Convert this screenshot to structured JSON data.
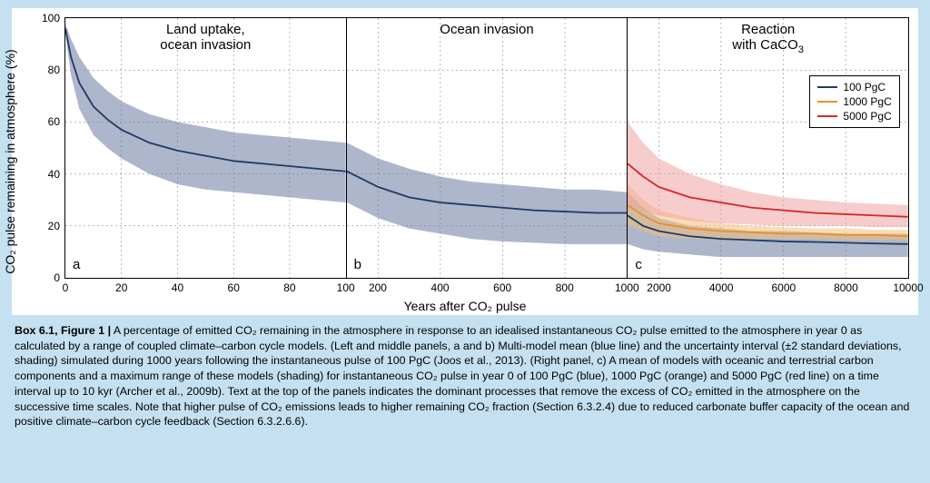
{
  "figure": {
    "ylabel": "CO₂ pulse remaining in atmosphere (%)",
    "xlabel": "Years after CO₂ pulse",
    "ylim": [
      0,
      100
    ],
    "yticks": [
      0,
      20,
      40,
      60,
      80,
      100
    ],
    "background_color": "#ffffff",
    "page_background": "#c5e0f0",
    "grid_color": "#000000",
    "grid_dash": "2 3",
    "panels": [
      {
        "id": "a",
        "title": "Land uptake,\nocean invasion",
        "xlim": [
          0,
          100
        ],
        "xticks": [
          0,
          20,
          40,
          60,
          80,
          100
        ],
        "show_yticks": true,
        "series": [
          {
            "name": "100 PgC",
            "color": "#1f3a63",
            "line_width": 1.8,
            "xs": [
              0,
              2,
              5,
              10,
              15,
              20,
              30,
              40,
              50,
              60,
              70,
              80,
              90,
              100
            ],
            "ys": [
              96,
              85,
              75,
              66,
              61,
              57,
              52,
              49,
              47,
              45,
              44,
              43,
              42,
              41
            ],
            "band_lo": [
              94,
              78,
              65,
              55,
              50,
              46,
              40,
              36,
              34,
              33,
              32,
              31,
              30,
              29
            ],
            "band_hi": [
              98,
              92,
              85,
              77,
              72,
              68,
              63,
              60,
              58,
              56,
              55,
              54,
              53,
              52
            ],
            "band_fill": "#6b7aa3",
            "band_opacity": 0.55
          }
        ]
      },
      {
        "id": "b",
        "title": "Ocean invasion",
        "xlim": [
          100,
          1000
        ],
        "xticks": [
          200,
          400,
          600,
          800,
          1000
        ],
        "show_yticks": false,
        "series": [
          {
            "name": "100 PgC",
            "color": "#1f3a63",
            "line_width": 1.8,
            "xs": [
              100,
              150,
              200,
              300,
              400,
              500,
              600,
              700,
              800,
              900,
              1000
            ],
            "ys": [
              41,
              38,
              35,
              31,
              29,
              28,
              27,
              26,
              25.5,
              25,
              25
            ],
            "band_lo": [
              29,
              26,
              23,
              19,
              17,
              15,
              14,
              13.5,
              13,
              13,
              13
            ],
            "band_hi": [
              52,
              49,
              46,
              42,
              39,
              37,
              36,
              35,
              34,
              34,
              33
            ],
            "band_fill": "#6b7aa3",
            "band_opacity": 0.55
          }
        ]
      },
      {
        "id": "c",
        "title": "Reaction\nwith CaCO₃",
        "xlim": [
          1000,
          10000
        ],
        "xticks": [
          2000,
          4000,
          6000,
          8000,
          10000
        ],
        "show_yticks": false,
        "legend": {
          "top_pct": 22,
          "right_pct": 3,
          "items": [
            {
              "label": "100 PgC",
              "color": "#1f3a63"
            },
            {
              "label": "1000 PgC",
              "color": "#e8902a"
            },
            {
              "label": "5000 PgC",
              "color": "#d62728"
            }
          ]
        },
        "series": [
          {
            "name": "100 PgC",
            "color": "#1f3a63",
            "line_width": 1.8,
            "xs": [
              1000,
              1500,
              2000,
              3000,
              4000,
              5000,
              6000,
              7000,
              8000,
              9000,
              10000
            ],
            "ys": [
              24,
              20,
              18,
              16,
              15,
              14.5,
              14,
              13.8,
              13.5,
              13.2,
              13
            ],
            "band_lo": [
              13,
              11,
              10,
              9,
              8,
              8,
              8,
              8,
              8,
              8,
              8
            ],
            "band_hi": [
              33,
              27,
              23,
              20,
              19,
              18,
              18,
              17.5,
              17,
              17,
              17
            ],
            "band_fill": "#6b7aa3",
            "band_opacity": 0.55
          },
          {
            "name": "1000 PgC",
            "color": "#e8902a",
            "line_width": 1.8,
            "xs": [
              1000,
              1500,
              2000,
              3000,
              4000,
              5000,
              6000,
              7000,
              8000,
              9000,
              10000
            ],
            "ys": [
              28,
              24,
              21,
              19,
              18,
              17.5,
              17,
              17,
              16.5,
              16.5,
              16
            ],
            "band_lo": [
              20,
              18,
              16,
              15,
              15,
              15,
              15,
              15,
              14.5,
              14.5,
              14.5
            ],
            "band_hi": [
              36,
              30,
              26,
              23,
              21,
              20,
              19.5,
              19,
              19,
              18.5,
              18.5
            ],
            "band_fill": "#f4bf7a",
            "band_opacity": 0.55
          },
          {
            "name": "5000 PgC",
            "color": "#d62728",
            "line_width": 1.8,
            "xs": [
              1000,
              1500,
              2000,
              3000,
              4000,
              5000,
              6000,
              7000,
              8000,
              9000,
              10000
            ],
            "ys": [
              44,
              39,
              35,
              31,
              29,
              27,
              26,
              25,
              24.5,
              24,
              23.5
            ],
            "band_lo": [
              28,
              26,
              24,
              22,
              21,
              20.5,
              20,
              20,
              20,
              19.5,
              19.5
            ],
            "band_hi": [
              60,
              52,
              46,
              40,
              36,
              33,
              31,
              30,
              29,
              28.5,
              28
            ],
            "band_fill": "#f0a2a2",
            "band_opacity": 0.55
          }
        ]
      }
    ]
  },
  "caption": {
    "label": "Box 6.1, Figure 1 |",
    "text": " A percentage of emitted CO₂ remaining in the atmosphere in response to an idealised instantaneous CO₂ pulse emitted to the atmosphere in year 0 as calculated by a range of coupled climate–carbon cycle models. (Left and middle panels, a and b) Multi-model mean (blue line) and the uncertainty interval (±2 standard deviations, shading) simulated during 1000 years following the instantaneous pulse of 100 PgC (Joos et al., 2013). (Right panel, c) A mean of models with oceanic and terrestrial carbon components and a maximum range of these models (shading) for instantaneous CO₂ pulse in year 0 of 100 PgC (blue), 1000 PgC (orange) and 5000 PgC (red line) on a time interval up to 10 kyr (Archer et al., 2009b). Text at the top of the panels indicates the dominant processes that remove the excess of CO₂ emitted in the atmosphere on the successive time scales. Note that higher pulse of CO₂ emissions leads to higher remaining CO₂ fraction (Section 6.3.2.4) due to reduced carbonate buffer capacity of the ocean and positive climate–carbon cycle feedback (Section 6.3.2.6.6)."
  }
}
